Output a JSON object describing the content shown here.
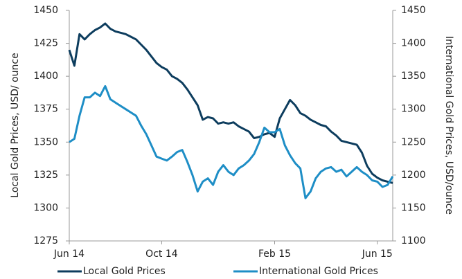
{
  "chart_data": {
    "type": "line",
    "categories": [
      "Jun 14",
      null,
      null,
      null,
      null,
      null,
      null,
      null,
      null,
      null,
      null,
      null,
      null,
      null,
      null,
      null,
      null,
      null,
      "Oct 14",
      null,
      null,
      null,
      null,
      null,
      null,
      null,
      null,
      null,
      null,
      null,
      null,
      null,
      null,
      null,
      null,
      null,
      null,
      null,
      null,
      null,
      "Feb 15",
      null,
      null,
      null,
      null,
      null,
      null,
      null,
      null,
      null,
      null,
      null,
      null,
      null,
      null,
      null,
      null,
      null,
      null,
      null,
      "Jun 15",
      null,
      null,
      null
    ],
    "series": [
      {
        "name": "Local Gold Prices",
        "color": "#0d3d5e",
        "values": [
          1420,
          1408,
          1432,
          1428,
          1432,
          1435,
          1437,
          1440,
          1436,
          1434,
          1433,
          1432,
          1430,
          1428,
          1424,
          1420,
          1415,
          1410,
          1407,
          1405,
          1400,
          1398,
          1395,
          1390,
          1384,
          1378,
          1367,
          1369,
          1368,
          1364,
          1365,
          1364,
          1365,
          1362,
          1360,
          1358,
          1353,
          1354,
          1356,
          1357,
          1354,
          1368,
          1375,
          1382,
          1378,
          1372,
          1370,
          1367,
          1365,
          1363,
          1362,
          1358,
          1355,
          1351,
          1350,
          1349,
          1348,
          1342,
          1332,
          1326,
          1323,
          1321,
          1320,
          1319
        ]
      },
      {
        "name": "International Gold Prices",
        "color": "#1e8ec6",
        "axis": "y2",
        "values": [
          1250,
          1255,
          1290,
          1318,
          1318,
          1325,
          1320,
          1335,
          1315,
          1310,
          1305,
          1300,
          1295,
          1290,
          1275,
          1262,
          1245,
          1228,
          1225,
          1222,
          1228,
          1235,
          1238,
          1220,
          1200,
          1175,
          1190,
          1195,
          1185,
          1205,
          1215,
          1205,
          1200,
          1210,
          1215,
          1222,
          1232,
          1250,
          1272,
          1265,
          1265,
          1270,
          1245,
          1230,
          1218,
          1210,
          1165,
          1175,
          1195,
          1205,
          1210,
          1212,
          1205,
          1208,
          1198,
          1205,
          1212,
          1205,
          1200,
          1192,
          1190,
          1182,
          1185,
          1198
        ]
      }
    ],
    "y_label": "Local Gold Prices, USD/ ounce",
    "y2_label": "International Gold Prices, USD/ounce",
    "ylim": [
      1275,
      1450
    ],
    "yticks": [
      1275,
      1300,
      1325,
      1350,
      1375,
      1400,
      1425,
      1450
    ],
    "y2lim": [
      1100,
      1450
    ],
    "y2ticks": [
      1100,
      1150,
      1200,
      1250,
      1300,
      1350,
      1400,
      1450
    ],
    "grid": false,
    "legend": "bottom"
  }
}
